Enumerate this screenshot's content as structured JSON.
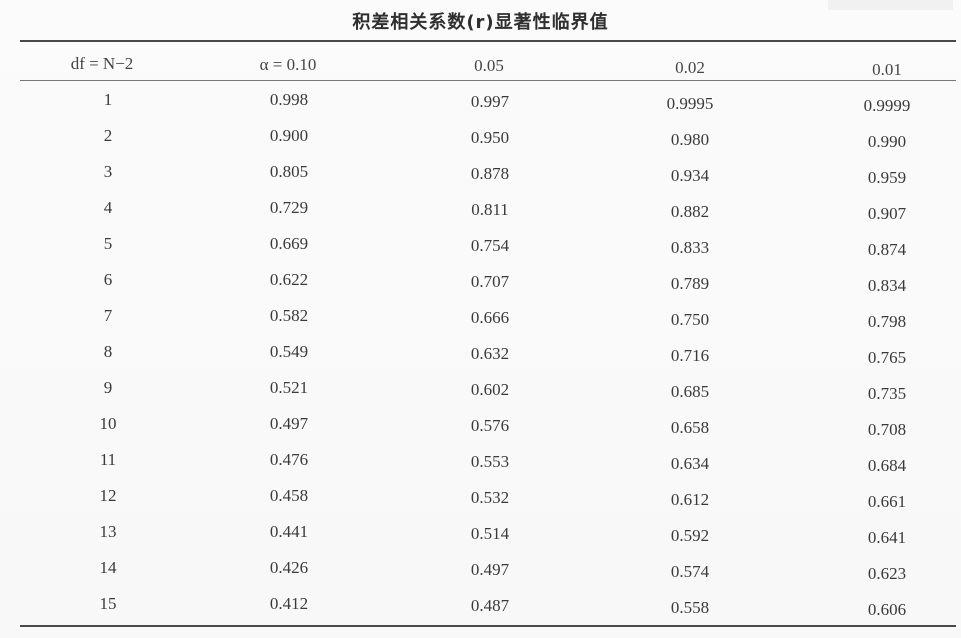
{
  "table": {
    "title": "积差相关系数(r)显著性临界值",
    "headers": [
      "df = N−2",
      "α = 0.10",
      "0.05",
      "0.02",
      "0.01"
    ],
    "rows": [
      [
        "1",
        "0.998",
        "0.997",
        "0.9995",
        "0.9999"
      ],
      [
        "2",
        "0.900",
        "0.950",
        "0.980",
        "0.990"
      ],
      [
        "3",
        "0.805",
        "0.878",
        "0.934",
        "0.959"
      ],
      [
        "4",
        "0.729",
        "0.811",
        "0.882",
        "0.907"
      ],
      [
        "5",
        "0.669",
        "0.754",
        "0.833",
        "0.874"
      ],
      [
        "6",
        "0.622",
        "0.707",
        "0.789",
        "0.834"
      ],
      [
        "7",
        "0.582",
        "0.666",
        "0.750",
        "0.798"
      ],
      [
        "8",
        "0.549",
        "0.632",
        "0.716",
        "0.765"
      ],
      [
        "9",
        "0.521",
        "0.602",
        "0.685",
        "0.735"
      ],
      [
        "10",
        "0.497",
        "0.576",
        "0.658",
        "0.708"
      ],
      [
        "11",
        "0.476",
        "0.553",
        "0.634",
        "0.684"
      ],
      [
        "12",
        "0.458",
        "0.532",
        "0.612",
        "0.661"
      ],
      [
        "13",
        "0.441",
        "0.514",
        "0.592",
        "0.641"
      ],
      [
        "14",
        "0.426",
        "0.497",
        "0.574",
        "0.623"
      ],
      [
        "15",
        "0.412",
        "0.487",
        "0.558",
        "0.606"
      ]
    ]
  }
}
